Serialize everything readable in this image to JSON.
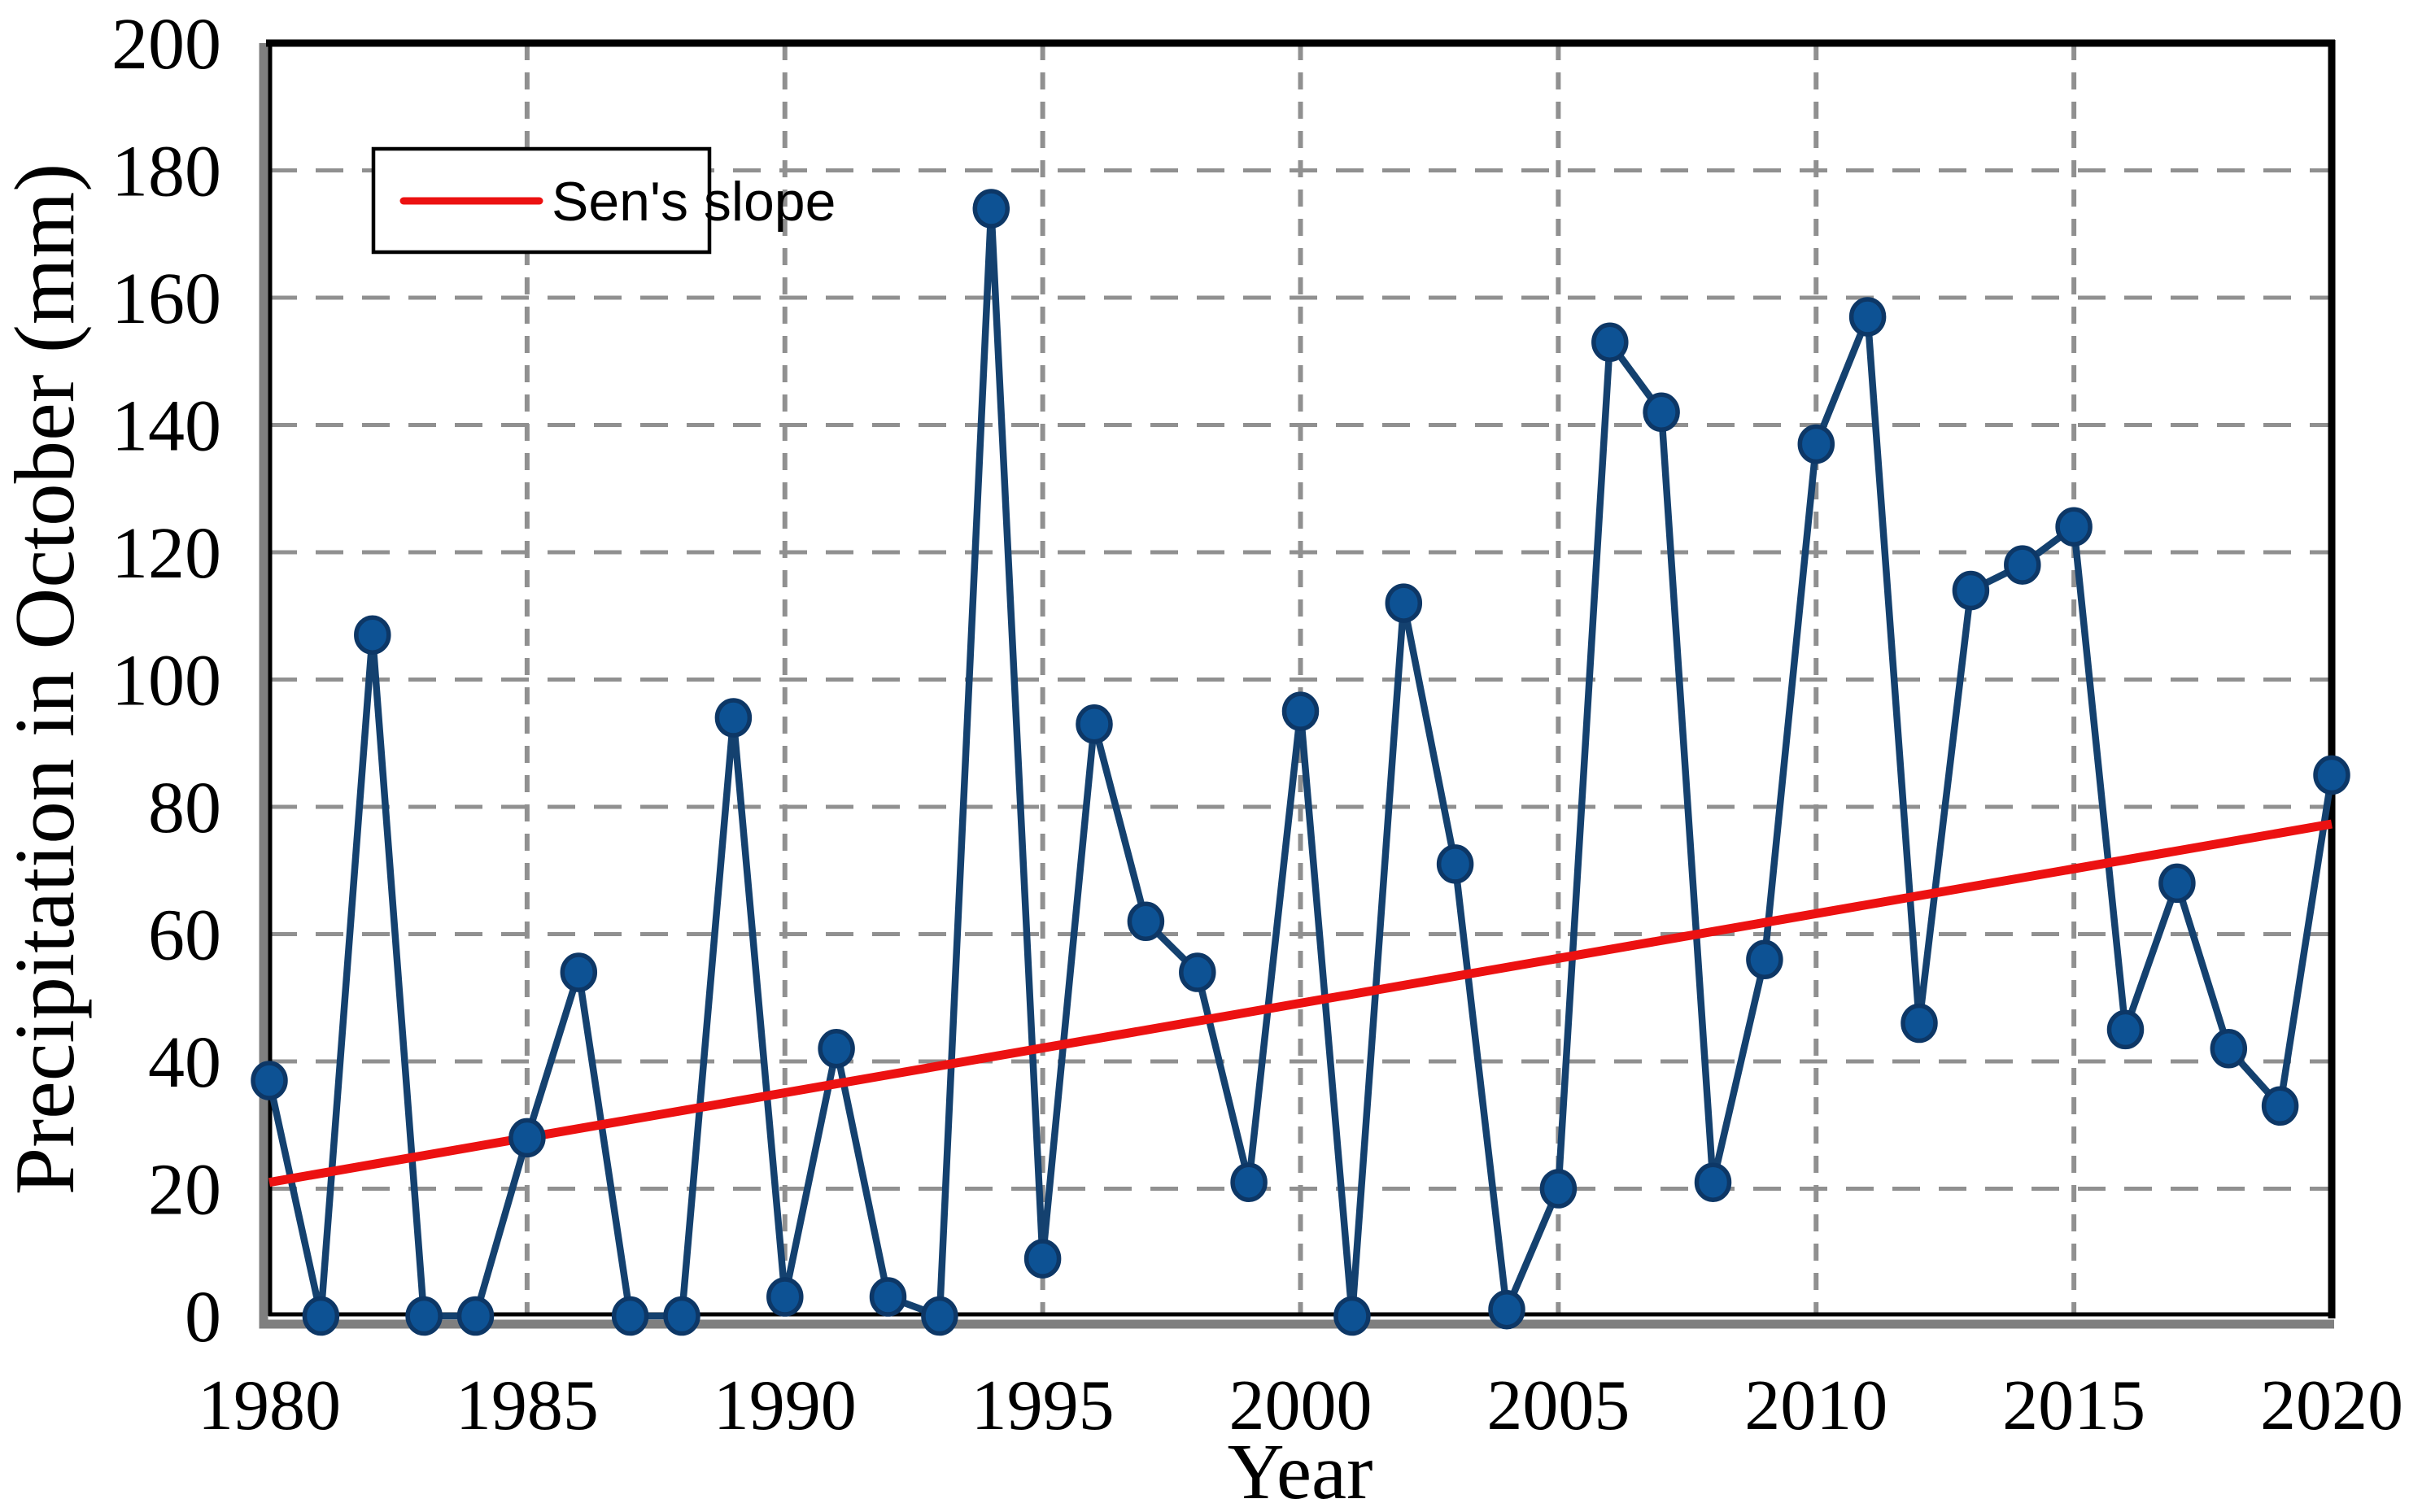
{
  "chart_data": {
    "type": "line",
    "title": "",
    "xlabel": "Year",
    "ylabel": "Precipitation in October (mm)",
    "xlim": [
      1980,
      2020
    ],
    "ylim": [
      0,
      200
    ],
    "xticks": [
      1980,
      1985,
      1990,
      1995,
      2000,
      2005,
      2010,
      2015,
      2020
    ],
    "yticks": [
      0,
      20,
      40,
      60,
      80,
      100,
      120,
      140,
      160,
      180,
      200
    ],
    "grid": "dashed",
    "years": [
      1980,
      1981,
      1982,
      1983,
      1984,
      1985,
      1986,
      1987,
      1988,
      1989,
      1990,
      1991,
      1992,
      1993,
      1994,
      1995,
      1996,
      1997,
      1998,
      1999,
      2000,
      2001,
      2002,
      2003,
      2004,
      2005,
      2006,
      2007,
      2008,
      2009,
      2010,
      2011,
      2012,
      2013,
      2014,
      2015,
      2016,
      2017,
      2018,
      2019,
      2020
    ],
    "values": [
      37,
      0,
      107,
      0,
      0,
      28,
      54,
      0,
      0,
      94,
      3,
      42,
      3,
      0,
      174,
      9,
      93,
      62,
      54,
      21,
      95,
      0,
      112,
      71,
      1,
      20,
      153,
      142,
      21,
      56,
      137,
      157,
      46,
      114,
      118,
      124,
      45,
      68,
      42,
      33,
      85
    ],
    "series_name": "Precipitation in October",
    "sen_line": {
      "start_year": 1980,
      "start_value": 21.0,
      "end_year": 2020,
      "end_value": 77.3
    },
    "legend": {
      "label": "Sen's slope",
      "position": "top-left"
    },
    "colors": {
      "marker_fill": "#0d5294",
      "marker_stroke": "#0d3766",
      "series_line": "#14416f",
      "sen_line": "#ec1111",
      "grid": "#909090",
      "frame": "#000000",
      "frame_shadow": "#7f7f7f",
      "background": "#ffffff"
    }
  }
}
